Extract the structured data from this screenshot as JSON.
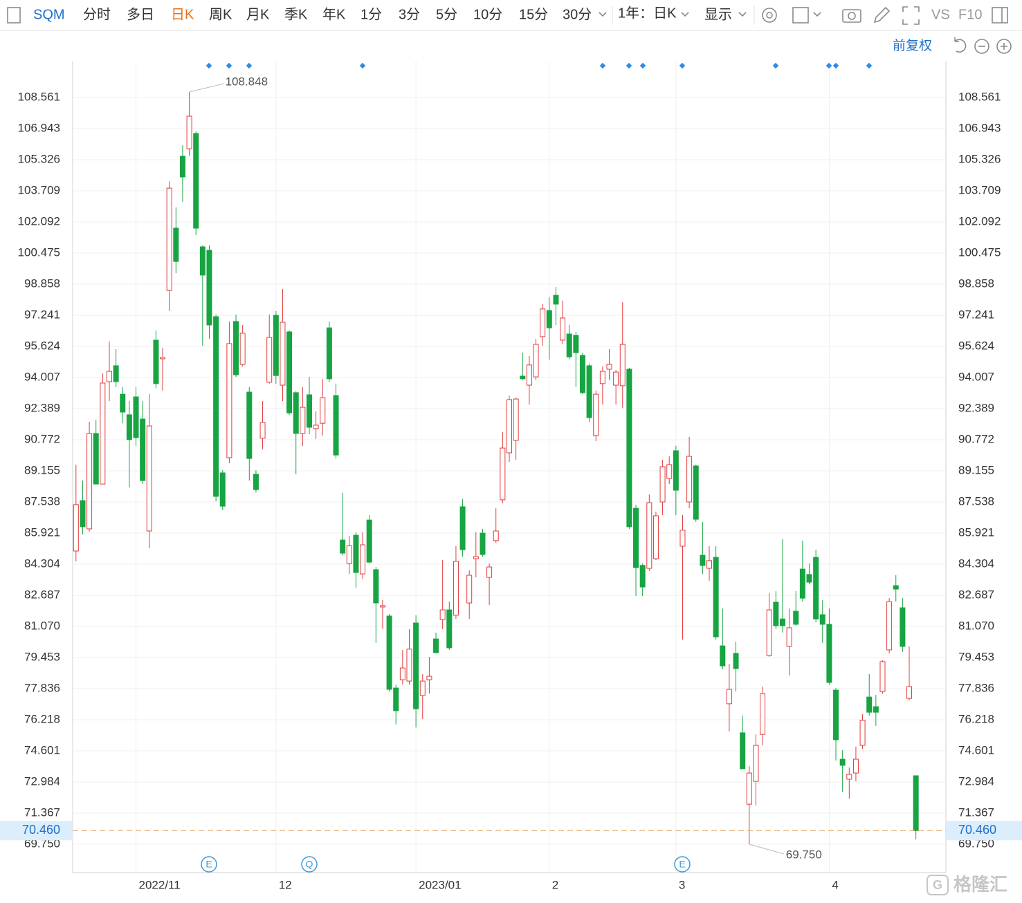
{
  "toolbar": {
    "symbol": "SQM",
    "periods": [
      "分时",
      "多日",
      "日K",
      "周K",
      "月K",
      "季K",
      "年K",
      "1分",
      "3分",
      "5分",
      "10分",
      "15分",
      "30分"
    ],
    "range": "1年：日K",
    "display": "显示",
    "vs": "VS",
    "f10": "F10",
    "adjust": "前复权"
  },
  "watermark": "格隆汇",
  "chart_data": {
    "type": "candlestick",
    "categories": [
      null,
      null,
      null,
      null,
      null,
      null,
      null,
      null,
      null,
      "2022/11",
      null,
      null,
      null,
      null,
      null,
      null,
      null,
      null,
      null,
      null,
      null,
      null,
      null,
      null,
      null,
      null,
      null,
      null,
      null,
      null,
      "12",
      null,
      null,
      null,
      null,
      null,
      null,
      null,
      null,
      null,
      null,
      null,
      null,
      null,
      null,
      null,
      null,
      null,
      null,
      null,
      null,
      "2023/01",
      null,
      null,
      null,
      null,
      null,
      null,
      null,
      null,
      null,
      null,
      null,
      null,
      null,
      null,
      null,
      null,
      null,
      null,
      null,
      "2",
      null,
      null,
      null,
      null,
      null,
      null,
      null,
      null,
      null,
      null,
      null,
      null,
      null,
      null,
      null,
      null,
      null,
      null,
      "3",
      null,
      null,
      null,
      null,
      null,
      null,
      null,
      null,
      null,
      null,
      null,
      null,
      null,
      null,
      null,
      null,
      null,
      null,
      null,
      null,
      null,
      null,
      "4",
      null,
      null,
      null,
      null,
      null,
      null,
      null,
      null,
      null,
      null,
      null,
      null,
      null
    ],
    "open": [
      84.99,
      87.61,
      86.14,
      91.1,
      88.47,
      93.79,
      94.62,
      93.14,
      92.07,
      93.0,
      91.85,
      86.03,
      95.95,
      94.98,
      98.53,
      101.77,
      105.51,
      105.9,
      106.69,
      100.8,
      100.62,
      97.17,
      89.05,
      89.84,
      96.92,
      94.69,
      93.25,
      88.98,
      90.85,
      93.76,
      97.24,
      93.61,
      96.38,
      93.22,
      91.1,
      93.11,
      91.35,
      91.63,
      96.59,
      93.07,
      85.56,
      84.34,
      85.81,
      83.8,
      86.6,
      84.02,
      82.08,
      81.61,
      77.87,
      78.3,
      78.23,
      81.25,
      77.48,
      78.3,
      80.42,
      81.43,
      81.93,
      81.65,
      87.29,
      82.29,
      84.59,
      85.92,
      83.62,
      85.53,
      87.65,
      90.09,
      90.74,
      94.08,
      93.61,
      94.04,
      96.13,
      97.49,
      98.28,
      95.95,
      96.27,
      96.2,
      95.16,
      94.62,
      90.99,
      93.69,
      94.44,
      93.61,
      93.58,
      94.44,
      87.21,
      84.24,
      84.09,
      84.59,
      87.54,
      88.76,
      90.2,
      85.24,
      87.54,
      89.41,
      84.77,
      84.09,
      84.66,
      80.06,
      77.05,
      79.67,
      75.54,
      71.83,
      73.02,
      75.46,
      79.56,
      82.33,
      81.46,
      80.03,
      81.86,
      84.05,
      83.77,
      84.66,
      81.68,
      81.18,
      77.76,
      74.17,
      73.13,
      73.45,
      74.89,
      77.4,
      76.9,
      77.69,
      79.85,
      83.19,
      82.04,
      77.33,
      73.31
    ],
    "high": [
      89.48,
      88.65,
      91.71,
      91.81,
      94.22,
      95.88,
      95.48,
      93.51,
      92.78,
      93.51,
      92.78,
      93.14,
      96.45,
      95.55,
      104.21,
      102.85,
      106.08,
      108.848,
      106.8,
      100.87,
      100.87,
      97.28,
      89.19,
      96.92,
      97.28,
      96.74,
      93.51,
      89.19,
      92.78,
      97.28,
      97.46,
      98.61,
      96.45,
      93.29,
      93.51,
      94.04,
      92.25,
      93.94,
      96.92,
      93.69,
      88.01,
      85.78,
      85.96,
      85.96,
      86.86,
      84.16,
      82.44,
      81.72,
      78.05,
      79.85,
      80.93,
      81.65,
      78.59,
      79.49,
      80.75,
      84.52,
      82.36,
      85.24,
      87.68,
      83.98,
      85.96,
      86.14,
      84.34,
      87.21,
      91.17,
      93.07,
      92.96,
      95.3,
      95.12,
      96.02,
      97.82,
      98.18,
      98.71,
      98.0,
      96.74,
      96.38,
      95.3,
      94.73,
      93.33,
      94.58,
      95.48,
      94.4,
      97.92,
      94.51,
      87.39,
      84.34,
      87.93,
      87.04,
      89.73,
      89.91,
      90.45,
      86.86,
      90.92,
      89.48,
      86.5,
      85.24,
      85.24,
      82.0,
      79.13,
      80.28,
      76.43,
      73.81,
      75.46,
      77.94,
      82.8,
      82.9,
      85.6,
      82.0,
      82.9,
      85.53,
      84.34,
      85.06,
      82.44,
      82.0,
      77.87,
      74.64,
      73.74,
      74.82,
      76.51,
      78.59,
      77.51,
      79.31,
      82.54,
      83.73,
      82.54,
      80.03,
      73.31
    ],
    "low": [
      84.45,
      85.85,
      86.0,
      88.47,
      88.47,
      92.78,
      93.51,
      91.63,
      88.29,
      90.45,
      88.47,
      85.13,
      93.44,
      93.33,
      97.46,
      99.43,
      103.14,
      105.54,
      101.41,
      95.66,
      96.02,
      87.57,
      87.11,
      89.55,
      94.04,
      94.58,
      88.65,
      88.04,
      90.27,
      93.69,
      93.69,
      92.78,
      92.07,
      88.98,
      90.45,
      91.06,
      90.81,
      90.99,
      93.76,
      89.8,
      84.77,
      83.8,
      83.08,
      83.55,
      84.34,
      80.21,
      80.93,
      77.69,
      75.97,
      78.05,
      78.05,
      75.82,
      76.25,
      77.58,
      79.67,
      80.93,
      79.85,
      81.46,
      84.7,
      81.46,
      83.62,
      84.7,
      82.18,
      85.42,
      87.47,
      89.62,
      89.73,
      93.87,
      92.6,
      93.87,
      95.66,
      94.94,
      96.74,
      95.73,
      94.94,
      93.51,
      93.14,
      91.71,
      90.7,
      92.6,
      93.87,
      92.6,
      92.43,
      86.14,
      82.65,
      82.65,
      83.95,
      84.52,
      86.86,
      88.47,
      86.86,
      80.39,
      87.21,
      86.5,
      83.8,
      83.44,
      80.39,
      78.84,
      75.61,
      77.69,
      73.67,
      69.75,
      71.76,
      74.89,
      79.49,
      80.93,
      80.75,
      78.52,
      81.11,
      82.36,
      83.26,
      81.29,
      80.21,
      78.05,
      74.1,
      72.48,
      72.12,
      73.02,
      74.71,
      76.43,
      75.9,
      77.58,
      79.67,
      82.36,
      79.74,
      77.22,
      70.0
    ],
    "close": [
      87.4,
      86.25,
      91.1,
      88.47,
      93.72,
      94.33,
      93.79,
      92.21,
      90.78,
      90.88,
      88.65,
      91.49,
      93.69,
      95.05,
      103.85,
      100.04,
      104.43,
      107.59,
      101.77,
      99.33,
      96.74,
      87.83,
      87.32,
      95.77,
      94.15,
      96.31,
      89.8,
      88.18,
      91.67,
      96.09,
      94.11,
      96.88,
      92.17,
      91.1,
      92.46,
      91.42,
      91.53,
      92.96,
      93.94,
      89.98,
      84.88,
      85.27,
      83.87,
      85.31,
      84.41,
      82.29,
      82.15,
      77.8,
      76.69,
      78.91,
      79.89,
      76.79,
      78.23,
      78.48,
      79.71,
      81.93,
      79.96,
      84.45,
      85.06,
      83.73,
      84.7,
      84.81,
      84.16,
      86.03,
      90.34,
      92.86,
      92.89,
      93.94,
      94.66,
      95.73,
      97.57,
      96.59,
      97.82,
      97.1,
      95.08,
      95.3,
      93.22,
      91.92,
      93.14,
      94.33,
      94.69,
      94.29,
      95.73,
      86.25,
      84.13,
      83.12,
      87.5,
      86.82,
      89.37,
      89.48,
      88.15,
      86.07,
      89.91,
      86.64,
      84.24,
      84.49,
      80.53,
      79.02,
      77.8,
      78.88,
      73.67,
      73.45,
      74.89,
      77.58,
      81.93,
      81.11,
      81.11,
      81.0,
      81.18,
      82.54,
      83.37,
      81.46,
      81.18,
      78.16,
      75.18,
      73.85,
      73.38,
      74.17,
      76.19,
      76.61,
      76.61,
      79.24,
      82.36,
      83.01,
      80.03,
      77.94,
      70.46
    ],
    "up_color": "#e23b3b",
    "down_color": "#17a443",
    "ylim": [
      68.277,
      110.466
    ],
    "yticks": [
      108.561,
      106.943,
      105.326,
      103.709,
      102.092,
      100.475,
      98.858,
      97.241,
      95.624,
      94.007,
      92.389,
      90.772,
      89.155,
      87.538,
      85.921,
      84.304,
      82.687,
      {
        "value": 81.07,
        "label": "81.070"
      },
      79.453,
      77.836,
      76.218,
      74.601,
      72.984,
      71.367,
      {
        "value": 69.75,
        "label": "69.750"
      }
    ],
    "grid": true,
    "price_line": {
      "value": 70.46,
      "label": "70.460"
    },
    "extreme_labels": {
      "high": "108.848",
      "low": "69.750"
    },
    "event_labels": [
      "E",
      "Q",
      "E"
    ]
  }
}
